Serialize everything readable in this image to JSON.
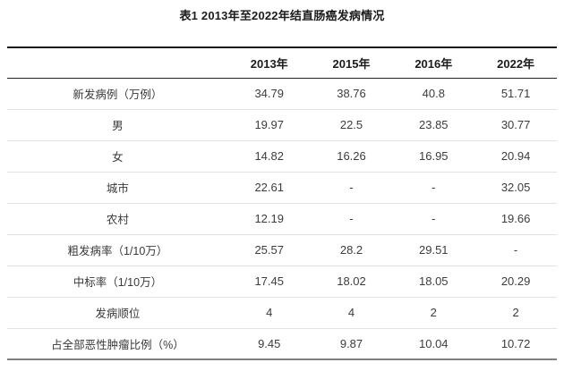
{
  "title": "表1 2013年至2022年结直肠癌发病情况",
  "chart_data": {
    "type": "table",
    "columns": [
      "",
      "2013年",
      "2015年",
      "2016年",
      "2022年"
    ],
    "rows": [
      {
        "label": "新发病例（万例）",
        "values": [
          "34.79",
          "38.76",
          "40.8",
          "51.71"
        ]
      },
      {
        "label": "男",
        "values": [
          "19.97",
          "22.5",
          "23.85",
          "30.77"
        ]
      },
      {
        "label": "女",
        "values": [
          "14.82",
          "16.26",
          "16.95",
          "20.94"
        ]
      },
      {
        "label": "城市",
        "values": [
          "22.61",
          "-",
          "-",
          "32.05"
        ]
      },
      {
        "label": "农村",
        "values": [
          "12.19",
          "-",
          "-",
          "19.66"
        ]
      },
      {
        "label": "粗发病率（1/10万）",
        "values": [
          "25.57",
          "28.2",
          "29.51",
          "-"
        ]
      },
      {
        "label": "中标率（1/10万）",
        "values": [
          "17.45",
          "18.02",
          "18.05",
          "20.29"
        ]
      },
      {
        "label": "发病顺位",
        "values": [
          "4",
          "4",
          "2",
          "2"
        ]
      },
      {
        "label": "占全部恶性肿瘤比例（%）",
        "values": [
          "9.45",
          "9.87",
          "10.04",
          "10.72"
        ]
      }
    ]
  }
}
